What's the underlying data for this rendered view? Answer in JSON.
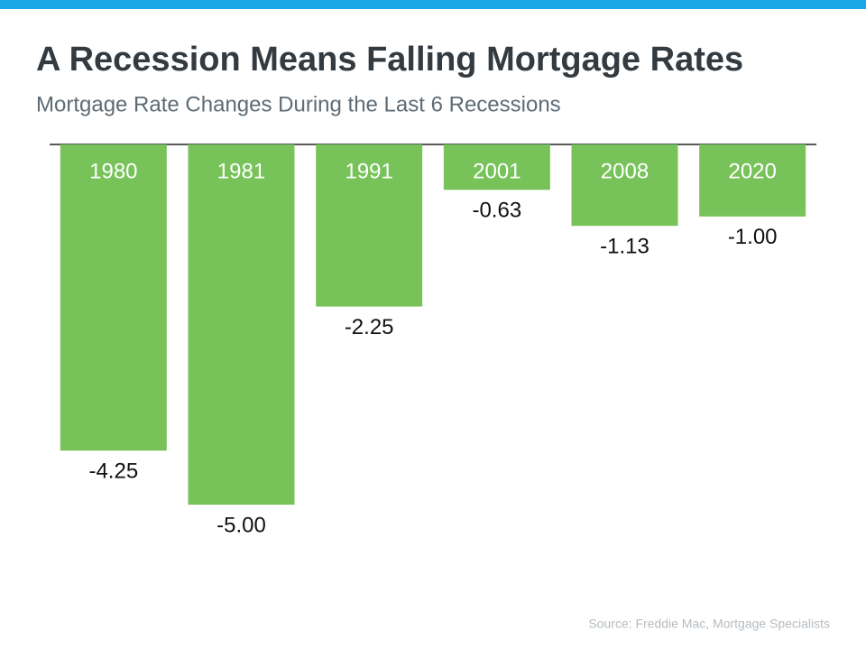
{
  "chart_data": {
    "type": "bar",
    "title": "A Recession Means Falling Mortgage Rates",
    "subtitle": "Mortgage Rate Changes During the Last 6 Recessions",
    "categories": [
      "1980",
      "1981",
      "1991",
      "2001",
      "2008",
      "2020"
    ],
    "values": [
      -4.25,
      -5.0,
      -2.25,
      -0.63,
      -1.13,
      -1.0
    ],
    "value_labels": [
      "-4.25",
      "-5.00",
      "-2.25",
      "-0.63",
      "-1.13",
      "-1.00"
    ],
    "color": "#77c35a",
    "source": "Source: Freddie Mac, Mortgage Specialists"
  }
}
